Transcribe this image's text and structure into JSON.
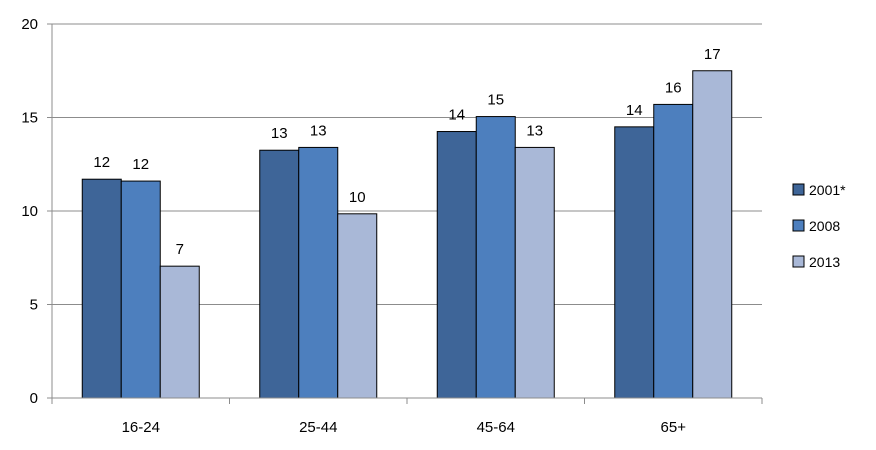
{
  "chart_data": {
    "type": "bar",
    "title": "",
    "xlabel": "",
    "ylabel": "",
    "categories": [
      "16-24",
      "25-44",
      "45-64",
      "65+"
    ],
    "series": [
      {
        "name": "2001*",
        "color": "#3E6598",
        "values": [
          11.7,
          13.25,
          14.25,
          14.5
        ],
        "labels": [
          "12",
          "13",
          "14",
          "14"
        ]
      },
      {
        "name": "2008",
        "color": "#4D7FBE",
        "values": [
          11.6,
          13.4,
          15.05,
          15.7
        ],
        "labels": [
          "12",
          "13",
          "15",
          "16"
        ]
      },
      {
        "name": "2013",
        "color": "#A9B8D7",
        "values": [
          7.05,
          9.85,
          13.4,
          17.5
        ],
        "labels": [
          "7",
          "10",
          "13",
          "17"
        ]
      }
    ],
    "ylim": [
      0,
      20
    ],
    "yticks": [
      "0",
      "5",
      "10",
      "15",
      "20"
    ],
    "grid": true,
    "legend_position": "right"
  }
}
